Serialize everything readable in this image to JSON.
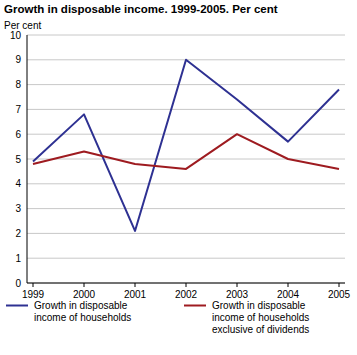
{
  "chart_data": {
    "type": "line",
    "title": "Growth in disposable income. 1999-2005. Per cent",
    "y_label": "Per cent",
    "categories": [
      "1999",
      "2000",
      "2001",
      "2002",
      "2003",
      "2004",
      "2005"
    ],
    "series": [
      {
        "name": "Growth in disposable income of households",
        "color": "#2e3192",
        "values": [
          4.9,
          6.8,
          2.1,
          9.0,
          7.4,
          5.7,
          7.8
        ]
      },
      {
        "name": "Growth in disposable income of households exclusive of dividends",
        "color": "#9e1b20",
        "values": [
          4.8,
          5.3,
          4.8,
          4.6,
          6.0,
          5.0,
          4.6
        ]
      }
    ],
    "ylim": [
      0,
      10
    ],
    "yticks": [
      0,
      1,
      2,
      3,
      4,
      5,
      6,
      7,
      8,
      9,
      10
    ],
    "grid": true,
    "legend": "bottom"
  }
}
